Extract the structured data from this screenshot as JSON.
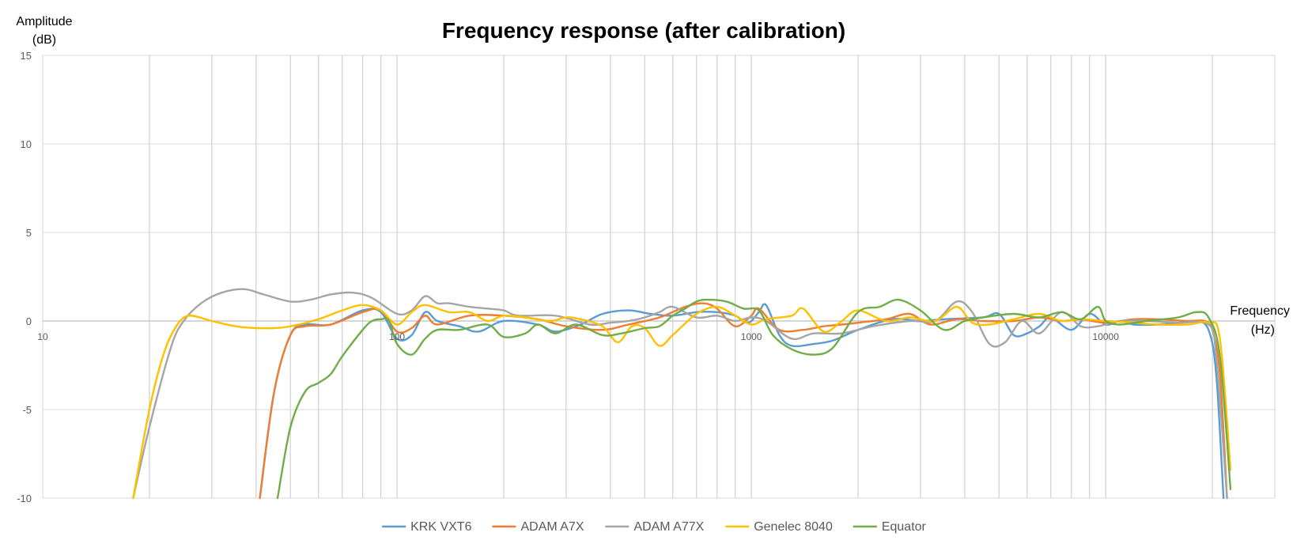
{
  "chart_data": {
    "type": "line",
    "title": "Frequency response (after calibration)",
    "ylabel_line1": "Amplitude",
    "ylabel_line2": "(dB)",
    "xlabel_line1": "Frequency",
    "xlabel_line2": "(Hz)",
    "x_scale": "log",
    "xlim": [
      10,
      30000
    ],
    "ylim": [
      -10,
      15
    ],
    "y_ticks": [
      15,
      10,
      5,
      0,
      -5,
      -10
    ],
    "x_tick_labels": [
      "10",
      "100",
      "1000",
      "10000"
    ],
    "x_tick_values": [
      10,
      100,
      1000,
      10000
    ],
    "x_gridlines": [
      20,
      30,
      40,
      50,
      60,
      70,
      80,
      90,
      100,
      200,
      300,
      400,
      500,
      600,
      700,
      800,
      900,
      1000,
      2000,
      3000,
      4000,
      5000,
      6000,
      7000,
      8000,
      9000,
      10000,
      20000
    ],
    "grid": true,
    "legend_position": "bottom",
    "series": [
      {
        "name": "KRK VXT6",
        "color": "#5B9BD5",
        "points": [
          [
            41,
            -10
          ],
          [
            45,
            -4
          ],
          [
            50,
            -0.8
          ],
          [
            55,
            -0.2
          ],
          [
            65,
            -0.2
          ],
          [
            80,
            0.6
          ],
          [
            90,
            0.5
          ],
          [
            100,
            -1
          ],
          [
            110,
            -0.8
          ],
          [
            120,
            0.5
          ],
          [
            130,
            0
          ],
          [
            150,
            -0.3
          ],
          [
            170,
            -0.6
          ],
          [
            200,
            0
          ],
          [
            250,
            -0.2
          ],
          [
            280,
            -0.6
          ],
          [
            330,
            -0.2
          ],
          [
            380,
            0.4
          ],
          [
            450,
            0.6
          ],
          [
            520,
            0.4
          ],
          [
            600,
            0.3
          ],
          [
            700,
            0.5
          ],
          [
            800,
            0.5
          ],
          [
            900,
            0.3
          ],
          [
            980,
            -0.1
          ],
          [
            1050,
            0.5
          ],
          [
            1100,
            0.9
          ],
          [
            1200,
            -0.8
          ],
          [
            1300,
            -1.4
          ],
          [
            1500,
            -1.3
          ],
          [
            1700,
            -1.1
          ],
          [
            2000,
            -0.5
          ],
          [
            2500,
            0.1
          ],
          [
            3000,
            0
          ],
          [
            3500,
            0.1
          ],
          [
            4500,
            0.2
          ],
          [
            5000,
            0.4
          ],
          [
            5500,
            -0.8
          ],
          [
            6000,
            -0.7
          ],
          [
            6500,
            -0.3
          ],
          [
            7000,
            0.2
          ],
          [
            8000,
            -0.5
          ],
          [
            9000,
            0.4
          ],
          [
            10000,
            -0.2
          ],
          [
            11000,
            0
          ],
          [
            12000,
            -0.2
          ],
          [
            14000,
            -0.2
          ],
          [
            16000,
            -0.1
          ],
          [
            18000,
            0
          ],
          [
            19500,
            -0.5
          ],
          [
            20500,
            -3
          ],
          [
            21500,
            -10
          ]
        ]
      },
      {
        "name": "ADAM A7X",
        "color": "#ED7D31",
        "points": [
          [
            41,
            -10
          ],
          [
            45,
            -4
          ],
          [
            50,
            -0.8
          ],
          [
            55,
            -0.3
          ],
          [
            65,
            -0.2
          ],
          [
            80,
            0.5
          ],
          [
            90,
            0.6
          ],
          [
            100,
            -0.6
          ],
          [
            110,
            -0.4
          ],
          [
            120,
            0.3
          ],
          [
            130,
            -0.2
          ],
          [
            160,
            0.3
          ],
          [
            200,
            0.3
          ],
          [
            250,
            0.1
          ],
          [
            300,
            -0.3
          ],
          [
            380,
            -0.5
          ],
          [
            450,
            -0.2
          ],
          [
            550,
            0.2
          ],
          [
            650,
            0.8
          ],
          [
            730,
            1
          ],
          [
            800,
            0.7
          ],
          [
            900,
            -0.3
          ],
          [
            1000,
            0.3
          ],
          [
            1050,
            0.7
          ],
          [
            1200,
            -0.5
          ],
          [
            1400,
            -0.5
          ],
          [
            1600,
            -0.3
          ],
          [
            1800,
            -0.2
          ],
          [
            2000,
            -0.1
          ],
          [
            2400,
            0.1
          ],
          [
            2800,
            0.4
          ],
          [
            3200,
            -0.2
          ],
          [
            3800,
            0.1
          ],
          [
            4500,
            0
          ],
          [
            5500,
            0
          ],
          [
            6500,
            0.2
          ],
          [
            7500,
            0
          ],
          [
            8500,
            0.1
          ],
          [
            10000,
            -0.1
          ],
          [
            12000,
            0.1
          ],
          [
            14000,
            0.1
          ],
          [
            17000,
            0
          ],
          [
            19000,
            0
          ],
          [
            20000,
            -0.5
          ],
          [
            21000,
            -3
          ],
          [
            22000,
            -10
          ]
        ]
      },
      {
        "name": "ADAM A77X",
        "color": "#A5A5A5",
        "points": [
          [
            18,
            -10
          ],
          [
            20,
            -6
          ],
          [
            23,
            -1.5
          ],
          [
            25,
            0
          ],
          [
            28,
            1
          ],
          [
            32,
            1.6
          ],
          [
            37,
            1.8
          ],
          [
            42,
            1.5
          ],
          [
            50,
            1.1
          ],
          [
            57,
            1.2
          ],
          [
            65,
            1.5
          ],
          [
            75,
            1.6
          ],
          [
            85,
            1.3
          ],
          [
            100,
            0.4
          ],
          [
            110,
            0.6
          ],
          [
            120,
            1.4
          ],
          [
            130,
            1
          ],
          [
            140,
            1
          ],
          [
            160,
            0.8
          ],
          [
            180,
            0.7
          ],
          [
            200,
            0.6
          ],
          [
            220,
            0.3
          ],
          [
            280,
            0.3
          ],
          [
            350,
            -0.2
          ],
          [
            400,
            -0.1
          ],
          [
            450,
            0
          ],
          [
            500,
            0.2
          ],
          [
            550,
            0.5
          ],
          [
            600,
            0.8
          ],
          [
            700,
            0.2
          ],
          [
            800,
            0.3
          ],
          [
            900,
            0
          ],
          [
            1000,
            0.2
          ],
          [
            1100,
            0
          ],
          [
            1300,
            -1
          ],
          [
            1500,
            -0.7
          ],
          [
            1800,
            -0.7
          ],
          [
            2200,
            -0.3
          ],
          [
            2800,
            0
          ],
          [
            3300,
            0
          ],
          [
            3800,
            1.1
          ],
          [
            4200,
            0.5
          ],
          [
            4700,
            -1.3
          ],
          [
            5200,
            -1.2
          ],
          [
            5800,
            0
          ],
          [
            6500,
            -0.7
          ],
          [
            7500,
            0.5
          ],
          [
            8500,
            -0.3
          ],
          [
            9500,
            -0.3
          ],
          [
            11000,
            0
          ],
          [
            13000,
            0
          ],
          [
            16000,
            -0.1
          ],
          [
            19500,
            -0.2
          ],
          [
            20500,
            -2
          ],
          [
            22000,
            -10
          ]
        ]
      },
      {
        "name": "Genelec 8040",
        "color": "#FFC000",
        "points": [
          [
            18,
            -10
          ],
          [
            20,
            -5
          ],
          [
            22,
            -1.8
          ],
          [
            24,
            -0.2
          ],
          [
            26,
            0.3
          ],
          [
            30,
            0
          ],
          [
            35,
            -0.3
          ],
          [
            40,
            -0.4
          ],
          [
            45,
            -0.4
          ],
          [
            50,
            -0.3
          ],
          [
            60,
            0.1
          ],
          [
            70,
            0.6
          ],
          [
            80,
            0.9
          ],
          [
            90,
            0.6
          ],
          [
            100,
            -0.2
          ],
          [
            110,
            0.5
          ],
          [
            120,
            0.9
          ],
          [
            140,
            0.5
          ],
          [
            160,
            0.5
          ],
          [
            180,
            0
          ],
          [
            200,
            0.3
          ],
          [
            230,
            0.2
          ],
          [
            270,
            0
          ],
          [
            300,
            0.2
          ],
          [
            330,
            0.1
          ],
          [
            380,
            -0.3
          ],
          [
            420,
            -1.2
          ],
          [
            460,
            -0.3
          ],
          [
            500,
            -0.4
          ],
          [
            550,
            -1.4
          ],
          [
            600,
            -0.8
          ],
          [
            700,
            0.4
          ],
          [
            800,
            0.8
          ],
          [
            900,
            0.3
          ],
          [
            1000,
            -0.2
          ],
          [
            1100,
            0.1
          ],
          [
            1300,
            0.3
          ],
          [
            1400,
            0.7
          ],
          [
            1600,
            -0.6
          ],
          [
            1800,
            0
          ],
          [
            2000,
            0.6
          ],
          [
            2400,
            0
          ],
          [
            2800,
            0.2
          ],
          [
            3300,
            0
          ],
          [
            3800,
            0.8
          ],
          [
            4200,
            -0.1
          ],
          [
            4700,
            -0.2
          ],
          [
            5500,
            0.1
          ],
          [
            6500,
            0.4
          ],
          [
            7500,
            0
          ],
          [
            8500,
            0.1
          ],
          [
            10000,
            0
          ],
          [
            12000,
            -0.1
          ],
          [
            14000,
            -0.2
          ],
          [
            17000,
            -0.2
          ],
          [
            19500,
            -0.1
          ],
          [
            21000,
            -1
          ],
          [
            22500,
            -8.4
          ]
        ]
      },
      {
        "name": "Equator",
        "color": "#70AD47",
        "points": [
          [
            46,
            -10
          ],
          [
            50,
            -6
          ],
          [
            55,
            -4
          ],
          [
            60,
            -3.5
          ],
          [
            65,
            -3
          ],
          [
            70,
            -2
          ],
          [
            80,
            -0.5
          ],
          [
            85,
            0
          ],
          [
            90,
            0.1
          ],
          [
            95,
            0
          ],
          [
            100,
            -1.3
          ],
          [
            110,
            -1.9
          ],
          [
            120,
            -1
          ],
          [
            130,
            -0.5
          ],
          [
            150,
            -0.5
          ],
          [
            180,
            -0.2
          ],
          [
            200,
            -0.9
          ],
          [
            230,
            -0.7
          ],
          [
            250,
            -0.2
          ],
          [
            280,
            -0.7
          ],
          [
            320,
            -0.2
          ],
          [
            380,
            -0.8
          ],
          [
            430,
            -0.7
          ],
          [
            500,
            -0.4
          ],
          [
            550,
            -0.3
          ],
          [
            600,
            0.3
          ],
          [
            650,
            0.7
          ],
          [
            700,
            1.1
          ],
          [
            750,
            1.2
          ],
          [
            850,
            1.1
          ],
          [
            950,
            0.7
          ],
          [
            1050,
            0.6
          ],
          [
            1150,
            -0.8
          ],
          [
            1300,
            -1.6
          ],
          [
            1500,
            -1.9
          ],
          [
            1700,
            -1.5
          ],
          [
            2000,
            0.5
          ],
          [
            2300,
            0.8
          ],
          [
            2600,
            1.2
          ],
          [
            3000,
            0.6
          ],
          [
            3500,
            -0.5
          ],
          [
            4000,
            0
          ],
          [
            4500,
            0.2
          ],
          [
            5500,
            0.4
          ],
          [
            6500,
            0.2
          ],
          [
            7500,
            0.5
          ],
          [
            8500,
            0.1
          ],
          [
            9500,
            0.8
          ],
          [
            10000,
            0
          ],
          [
            11000,
            -0.2
          ],
          [
            13000,
            0
          ],
          [
            16000,
            0.2
          ],
          [
            18000,
            0.5
          ],
          [
            19500,
            0.2
          ],
          [
            21000,
            -2
          ],
          [
            22500,
            -9.5
          ]
        ]
      }
    ]
  }
}
